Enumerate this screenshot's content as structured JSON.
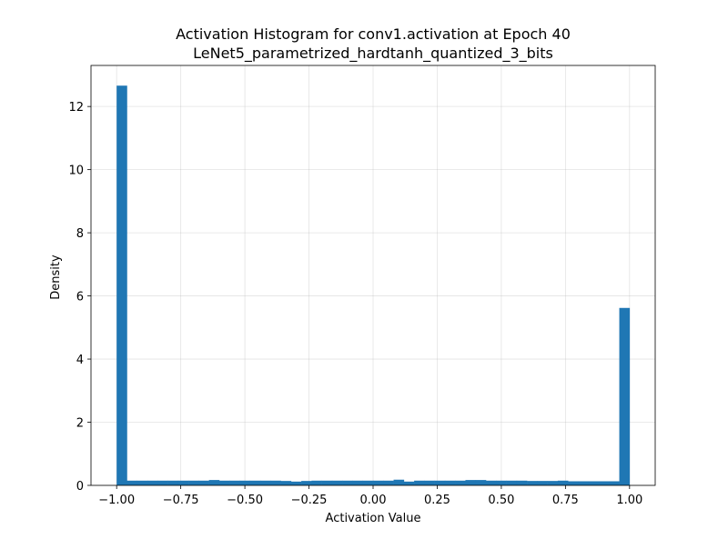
{
  "chart_data": {
    "type": "bar",
    "title": "Activation Histogram for conv1.activation at Epoch 40",
    "subtitle": "LeNet5_parametrized_hardtanh_quantized_3_bits",
    "xlabel": "Activation Value",
    "ylabel": "Density",
    "xlim": [
      -1.1,
      1.1
    ],
    "ylim": [
      0,
      13.3
    ],
    "grid": true,
    "bar_color": "#1f77b4",
    "x_ticks": [
      -1.0,
      -0.75,
      -0.5,
      -0.25,
      0.0,
      0.25,
      0.5,
      0.75,
      1.0
    ],
    "x_tick_labels": [
      "−1.00",
      "−0.75",
      "−0.50",
      "−0.25",
      "0.00",
      "0.25",
      "0.50",
      "0.75",
      "1.00"
    ],
    "y_ticks": [
      0,
      2,
      4,
      6,
      8,
      10,
      12
    ],
    "y_tick_labels": [
      "0",
      "2",
      "4",
      "6",
      "8",
      "10",
      "12"
    ],
    "bin_edges_range": [
      -1.0,
      1.0
    ],
    "bin_count": 50,
    "values": [
      12.66,
      0.15,
      0.15,
      0.15,
      0.15,
      0.15,
      0.15,
      0.15,
      0.15,
      0.17,
      0.15,
      0.15,
      0.15,
      0.15,
      0.15,
      0.15,
      0.14,
      0.12,
      0.14,
      0.15,
      0.15,
      0.15,
      0.15,
      0.15,
      0.15,
      0.15,
      0.15,
      0.18,
      0.12,
      0.15,
      0.15,
      0.15,
      0.15,
      0.15,
      0.17,
      0.17,
      0.15,
      0.15,
      0.15,
      0.15,
      0.14,
      0.14,
      0.14,
      0.15,
      0.13,
      0.13,
      0.13,
      0.13,
      0.13,
      5.62
    ]
  }
}
